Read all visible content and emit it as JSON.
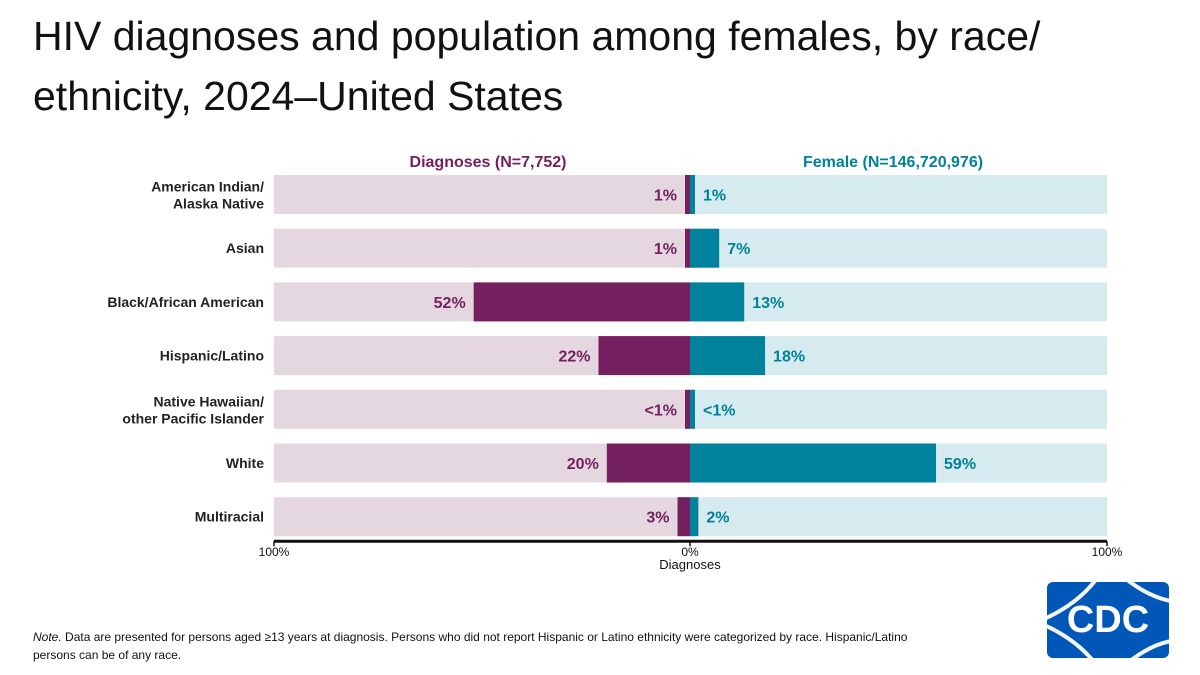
{
  "title": "HIV diagnoses and population among females, by race/ ethnicity, 2024–United States",
  "note": {
    "lead": "Note.",
    "text": " Data are presented for persons aged ≥13 years at diagnosis. Persons who did not report Hispanic or Latino ethnicity were categorized by race. Hispanic/Latino persons can be of any race."
  },
  "logo_text": "CDC",
  "colors": {
    "diag_dark": "#74205f",
    "diag_light": "#e5d7e0",
    "pop_dark": "#00829c",
    "pop_light": "#d5ebef",
    "axis": "#111111"
  },
  "chart_data": {
    "type": "bar",
    "orientation": "horizontal-diverging",
    "categories": [
      "American Indian/ Alaska Native",
      "Asian",
      "Black/African American",
      "Hispanic/Latino",
      "Native Hawaiian/ other Pacific Islander",
      "White",
      "Multiracial"
    ],
    "series": [
      {
        "name": "Diagnoses (N=7,752)",
        "side": "left",
        "values": [
          1,
          1,
          52,
          22,
          0.5,
          20,
          3
        ],
        "labels": [
          "1%",
          "1%",
          "52%",
          "22%",
          "<1%",
          "20%",
          "3%"
        ]
      },
      {
        "name": "Female (N=146,720,976)",
        "side": "right",
        "values": [
          1,
          7,
          13,
          18,
          0.5,
          59,
          2
        ],
        "labels": [
          "1%",
          "7%",
          "13%",
          "18%",
          "<1%",
          "59%",
          "2%"
        ]
      }
    ],
    "xlim": [
      0,
      100
    ],
    "ticks": [
      "100%",
      "0%",
      "100%"
    ],
    "xlabel": "Diagnoses",
    "grid": false,
    "legend": "top"
  }
}
